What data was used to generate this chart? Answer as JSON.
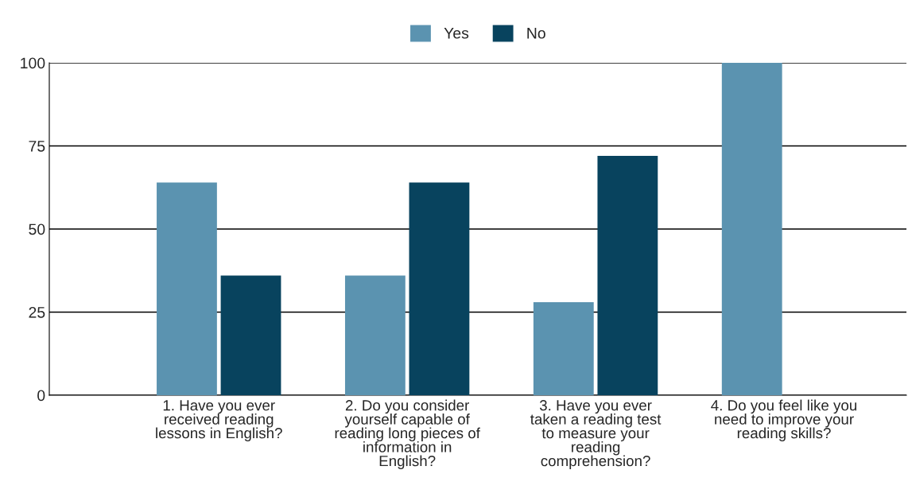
{
  "chart_data": {
    "type": "bar",
    "categories": [
      "1. Have you ever\nreceived reading\nlessons in English?",
      "2. Do you consider\nyourself capable of\nreading long pieces of\ninformation in\nEnglish?",
      "3. Have you ever\ntaken a reading test\nto measure your\nreading\ncomprehension?",
      "4. Do you feel like you\nneed to improve your\nreading skills?"
    ],
    "series": [
      {
        "name": "Yes",
        "color": "#5b93b0",
        "values": [
          64,
          36,
          28,
          100
        ]
      },
      {
        "name": "No",
        "color": "#08435e",
        "values": [
          36,
          64,
          72,
          null
        ]
      }
    ],
    "ylim": [
      0,
      100
    ],
    "yticks": [
      0,
      25,
      50,
      75,
      100
    ],
    "grid": "y",
    "legend": "top"
  }
}
